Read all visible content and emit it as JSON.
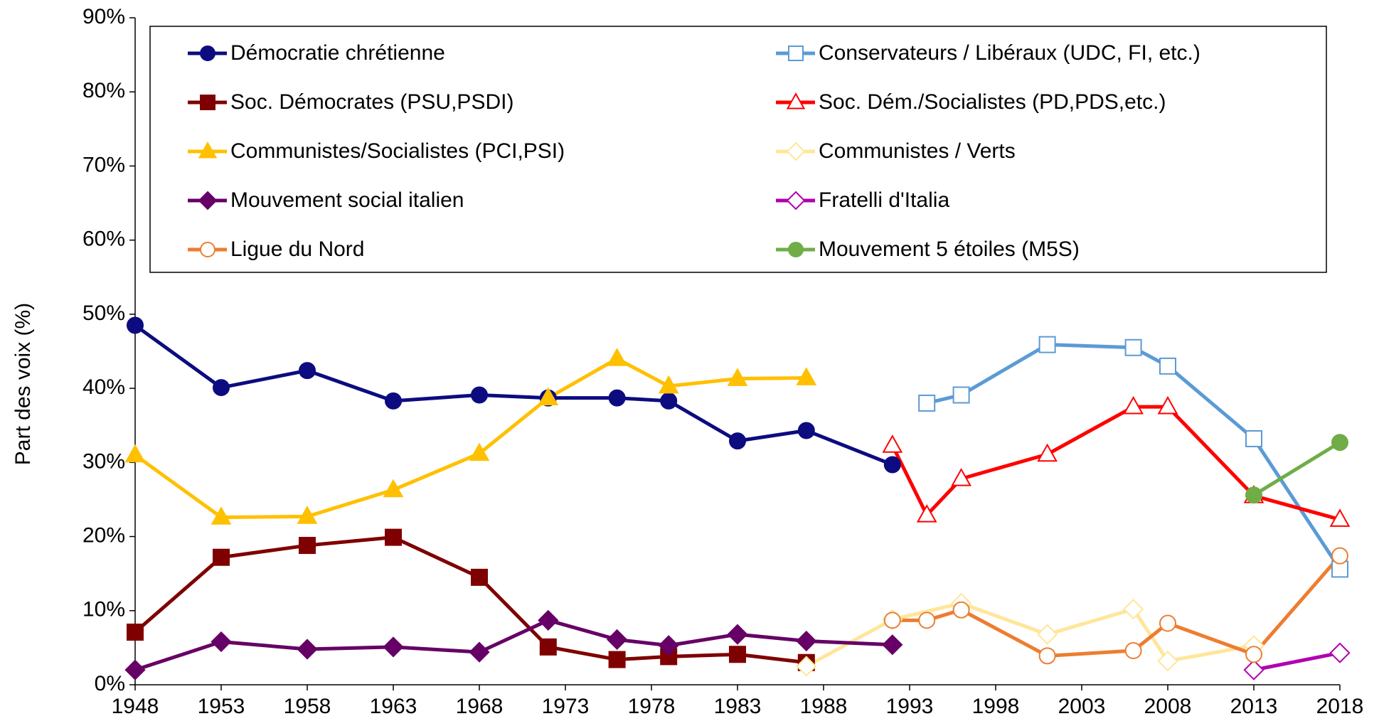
{
  "chart_data": {
    "type": "line",
    "y_label": "Part des voix (%)",
    "xlim": [
      1948,
      2018
    ],
    "xticks": [
      1948,
      1953,
      1958,
      1963,
      1968,
      1973,
      1978,
      1983,
      1988,
      1993,
      1998,
      2003,
      2008,
      2013,
      2018
    ],
    "ylim": [
      0,
      90
    ],
    "yticks": [
      {
        "value": 0,
        "label": "0%"
      },
      {
        "value": 10,
        "label": "10%"
      },
      {
        "value": 20,
        "label": "20%"
      },
      {
        "value": 30,
        "label": "30%"
      },
      {
        "value": 40,
        "label": "40%"
      },
      {
        "value": 50,
        "label": "50%"
      },
      {
        "value": 60,
        "label": "60%"
      },
      {
        "value": 70,
        "label": "70%"
      },
      {
        "value": 80,
        "label": "80%"
      },
      {
        "value": 90,
        "label": "90%"
      }
    ],
    "grid": false,
    "legend": "top",
    "series": [
      {
        "name": "Démocratie chrétienne",
        "color": "#0c0c80",
        "marker": "circle",
        "filled": true,
        "x": [
          1948,
          1953,
          1958,
          1963,
          1968,
          1972,
          1976,
          1979,
          1983,
          1987,
          1992
        ],
        "values": [
          48.5,
          40.1,
          42.4,
          38.3,
          39.1,
          38.7,
          38.7,
          38.3,
          32.9,
          34.3,
          29.7
        ]
      },
      {
        "name": "Conservateurs / Libéraux (UDC, FI, etc.)",
        "color": "#5b9bd5",
        "marker": "square",
        "filled": false,
        "x": [
          1994,
          1996,
          2001,
          2006,
          2008,
          2013,
          2018
        ],
        "values": [
          38.0,
          39.1,
          45.9,
          45.5,
          43.0,
          33.2,
          15.6
        ]
      },
      {
        "name": "Soc. Démocrates (PSU,PSDI)",
        "color": "#7f0000",
        "marker": "square",
        "filled": true,
        "x": [
          1948,
          1953,
          1958,
          1963,
          1968,
          1972,
          1976,
          1979,
          1983,
          1987
        ],
        "values": [
          7.1,
          17.2,
          18.8,
          19.9,
          14.5,
          5.1,
          3.4,
          3.8,
          4.1,
          3.0
        ]
      },
      {
        "name": "Soc. Dém./Socialistes (PD,PDS,etc.)",
        "color": "#ff0000",
        "marker": "triangle",
        "filled": false,
        "x": [
          1992,
          1994,
          1996,
          2001,
          2006,
          2008,
          2013,
          2018
        ],
        "values": [
          32.3,
          22.9,
          27.8,
          31.1,
          37.5,
          37.5,
          25.5,
          22.3
        ]
      },
      {
        "name": "Communistes/Socialistes (PCI,PSI)",
        "color": "#ffc000",
        "marker": "triangle",
        "filled": true,
        "x": [
          1948,
          1953,
          1958,
          1963,
          1968,
          1972,
          1976,
          1979,
          1983,
          1987
        ],
        "values": [
          31.0,
          22.6,
          22.7,
          26.3,
          31.2,
          38.7,
          44.0,
          40.3,
          41.3,
          41.4
        ]
      },
      {
        "name": "Communistes / Verts",
        "color": "#ffe699",
        "marker": "diamond",
        "filled": false,
        "x": [
          1987,
          1992,
          1996,
          2001,
          2006,
          2008,
          2013
        ],
        "values": [
          2.5,
          8.8,
          11.0,
          6.8,
          10.2,
          3.2,
          5.3
        ]
      },
      {
        "name": "Mouvement social italien",
        "color": "#660066",
        "marker": "diamond",
        "filled": true,
        "x": [
          1948,
          1953,
          1958,
          1963,
          1968,
          1972,
          1976,
          1979,
          1983,
          1987,
          1992
        ],
        "values": [
          2.0,
          5.8,
          4.8,
          5.1,
          4.4,
          8.7,
          6.1,
          5.3,
          6.8,
          5.9,
          5.4
        ]
      },
      {
        "name": "Fratelli d'Italia",
        "color": "#b000b0",
        "marker": "diamond",
        "filled": false,
        "x": [
          2013,
          2018
        ],
        "values": [
          2.0,
          4.3
        ]
      },
      {
        "name": "Ligue du Nord",
        "color": "#ed7d31",
        "marker": "circle",
        "filled": false,
        "x": [
          1992,
          1994,
          1996,
          2001,
          2006,
          2008,
          2013,
          2018
        ],
        "values": [
          8.7,
          8.7,
          10.1,
          3.9,
          4.6,
          8.3,
          4.1,
          17.4
        ]
      },
      {
        "name": "Mouvement 5 étoiles (M5S)",
        "color": "#70ad47",
        "marker": "circle",
        "filled": true,
        "x": [
          2013,
          2018
        ],
        "values": [
          25.6,
          32.7
        ]
      }
    ]
  }
}
